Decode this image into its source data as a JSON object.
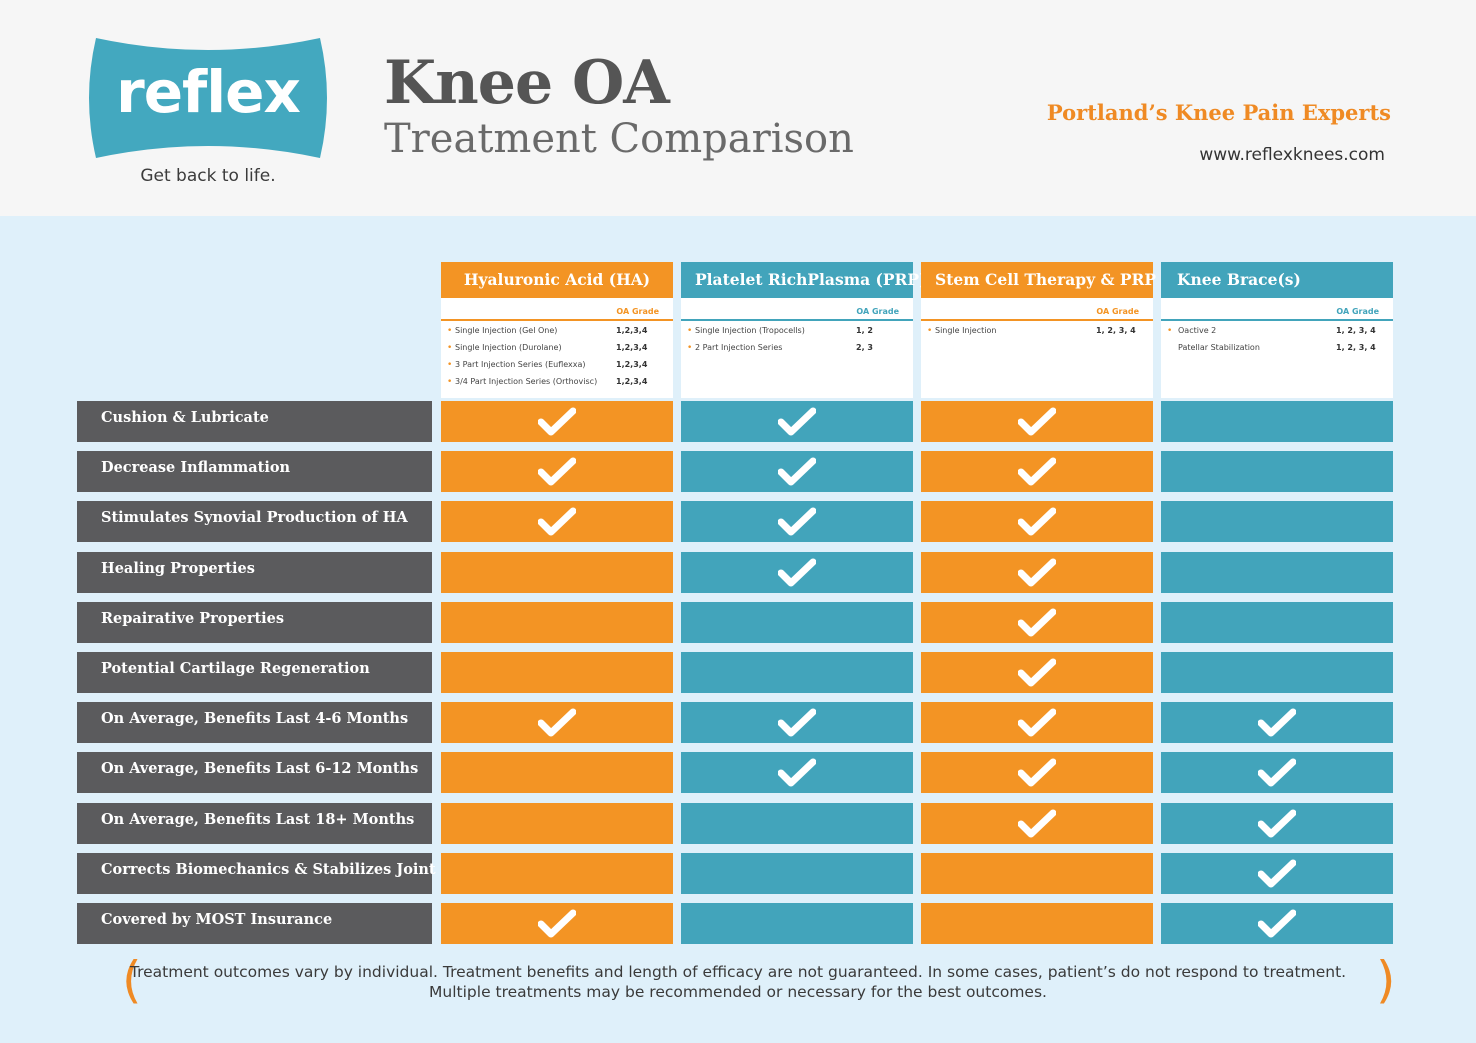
{
  "logo": {
    "text": "reflex",
    "tagline": "Get back to life."
  },
  "title": {
    "main": "Knee OA",
    "sub": "Treatment Comparison"
  },
  "experts": "Portland’s Knee Pain Experts",
  "website": "www.reflexknees.com",
  "colors": {
    "orange": "#f39424",
    "teal": "#42a4bb",
    "dark": "#5b5b5d",
    "background": "#dff0fa",
    "logo": "#43a8bf"
  },
  "columns": [
    {
      "title": "Hyaluronic Acid (HA)",
      "color": "orange",
      "grade_label": "OA Grade",
      "items": [
        {
          "name": "Single Injection (Gel One)",
          "grade": "1,2,3,4"
        },
        {
          "name": "Single Injection (Durolane)",
          "grade": "1,2,3,4"
        },
        {
          "name": "3 Part Injection Series (Euflexxa)",
          "grade": "1,2,3,4"
        },
        {
          "name": "3/4 Part Injection Series (Orthovisc)",
          "grade": "1,2,3,4"
        }
      ]
    },
    {
      "title": "Platelet RichPlasma (PRP)",
      "color": "teal",
      "grade_label": "OA Grade",
      "items": [
        {
          "name": "Single Injection (Tropocells)",
          "grade": "1, 2"
        },
        {
          "name": "2 Part Injection Series",
          "grade": "2, 3"
        }
      ]
    },
    {
      "title": "Stem Cell Therapy & PRP",
      "color": "orange",
      "grade_label": "OA Grade",
      "items": [
        {
          "name": "Single Injection",
          "grade": "1, 2, 3, 4"
        }
      ]
    },
    {
      "title": "Knee Brace(s)",
      "color": "teal",
      "grade_label": "OA Grade",
      "items": [
        {
          "name": "Oactive 2",
          "grade": "1, 2, 3, 4",
          "bullet": true
        },
        {
          "name": "Patellar Stabilization",
          "grade": "1, 2, 3, 4",
          "bullet": false
        }
      ]
    }
  ],
  "rows": [
    {
      "label": "Cushion & Lubricate",
      "checks": [
        true,
        true,
        true,
        false
      ]
    },
    {
      "label": "Decrease Inflammation",
      "checks": [
        true,
        true,
        true,
        false
      ]
    },
    {
      "label": "Stimulates Synovial Production of HA",
      "checks": [
        true,
        true,
        true,
        false
      ]
    },
    {
      "label": "Healing Properties",
      "checks": [
        false,
        true,
        true,
        false
      ]
    },
    {
      "label": "Repairative Properties",
      "checks": [
        false,
        false,
        true,
        false
      ]
    },
    {
      "label": "Potential Cartilage Regeneration",
      "checks": [
        false,
        false,
        true,
        false
      ]
    },
    {
      "label": "On Average, Benefits Last 4-6 Months",
      "checks": [
        true,
        true,
        true,
        true
      ]
    },
    {
      "label": "On Average, Benefits Last 6-12 Months",
      "checks": [
        false,
        true,
        true,
        true
      ]
    },
    {
      "label": "On Average, Benefits Last 18+ Months",
      "checks": [
        false,
        false,
        true,
        true
      ]
    },
    {
      "label": "Corrects Biomechanics & Stabilizes Joint",
      "checks": [
        false,
        false,
        false,
        true
      ]
    },
    {
      "label": "Covered by MOST Insurance",
      "checks": [
        true,
        false,
        false,
        true
      ]
    }
  ],
  "footnote": {
    "line1": "Treatment outcomes vary by individual. Treatment benefits and length of efficacy are not guaranteed. In some cases, patient’s do not respond to treatment.",
    "line2": "Multiple treatments may be recommended or necessary for the best outcomes."
  }
}
